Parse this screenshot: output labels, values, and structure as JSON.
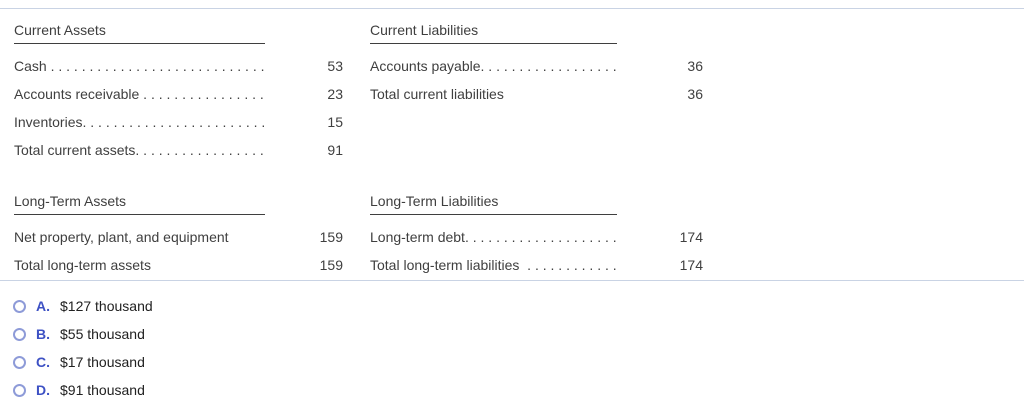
{
  "dividers": {
    "color": "#c9d3e4"
  },
  "table": {
    "leader_dots": " . . . . . . . . . . . . . . . . . . . . . . . . . . . . . . . . . . . . . . . . . . . . .",
    "sections": [
      {
        "header": "Current Assets",
        "rows": [
          {
            "label": "Cash",
            "value": "53"
          },
          {
            "label": "Accounts receivable",
            "value": "23"
          },
          {
            "label": "Inventories.",
            "value": "15"
          },
          {
            "label": "Total current assets.",
            "value": "91"
          }
        ]
      },
      {
        "header": "Current Liabilities",
        "rows": [
          {
            "label": "Accounts payable.",
            "value": "36"
          },
          {
            "label": "Total current liabilities",
            "value": "36"
          }
        ]
      },
      {
        "header": "Long-Term Assets",
        "rows": [
          {
            "label": "Net property, plant, and equipment",
            "value": "159"
          },
          {
            "label": "Total long-term assets",
            "value": "159"
          }
        ]
      },
      {
        "header": "Long-Term Liabilities",
        "rows": [
          {
            "label": "Long-term debt.",
            "value": "174"
          },
          {
            "label": "Total long-term liabilities ",
            "value": "174"
          }
        ]
      }
    ]
  },
  "options": [
    {
      "letter": "A.",
      "text": "$127 thousand"
    },
    {
      "letter": "B.",
      "text": "$55 thousand"
    },
    {
      "letter": "C.",
      "text": "$17 thousand"
    },
    {
      "letter": "D.",
      "text": "$91 thousand"
    }
  ]
}
